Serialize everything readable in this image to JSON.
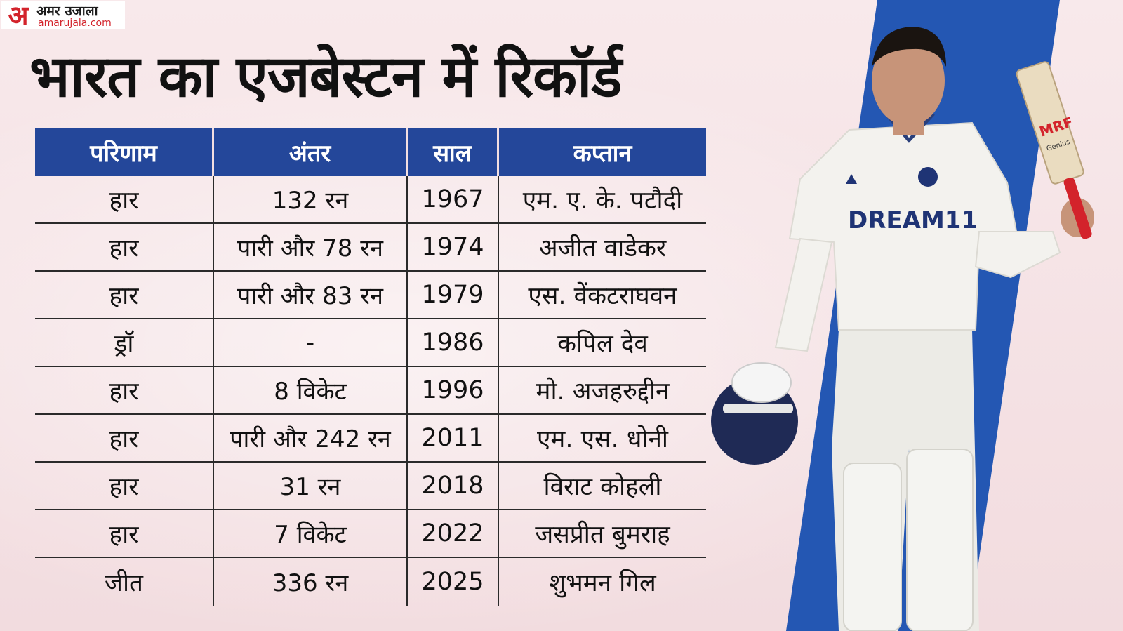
{
  "brand": {
    "logo_mark": "अ",
    "name": "अमर उजाला",
    "domain": "amarujala.com"
  },
  "title": "भारत का एजबेस्टन में रिकॉर्ड",
  "table": {
    "headers": [
      "परिणाम",
      "अंतर",
      "साल",
      "कप्तान"
    ],
    "rows": [
      [
        "हार",
        "132 रन",
        "1967",
        "एम. ए. के. पटौदी"
      ],
      [
        "हार",
        "पारी और 78 रन",
        "1974",
        "अजीत वाडेकर"
      ],
      [
        "हार",
        "पारी और 83 रन",
        "1979",
        "एस. वेंकटराघवन"
      ],
      [
        "ड्रॉ",
        "-",
        "1986",
        "कपिल देव"
      ],
      [
        "हार",
        "8 विकेट",
        "1996",
        "मो. अजहरुद्दीन"
      ],
      [
        "हार",
        "पारी और 242 रन",
        "2011",
        "एम. एस. धोनी"
      ],
      [
        "हार",
        "31 रन",
        "2018",
        "विराट कोहली"
      ],
      [
        "हार",
        "7 विकेट",
        "2022",
        "जसप्रीत बुमराह"
      ],
      [
        "जीत",
        "336 रन",
        "2025",
        "शुभमन गिल"
      ]
    ]
  },
  "player": {
    "jersey_sponsor": "DREAM11",
    "bat_brand": "MRF",
    "bat_model": "Genius"
  },
  "colors": {
    "header_blue": "#24479a",
    "stripe_blue": "#2457b3",
    "logo_red": "#d3232b"
  }
}
